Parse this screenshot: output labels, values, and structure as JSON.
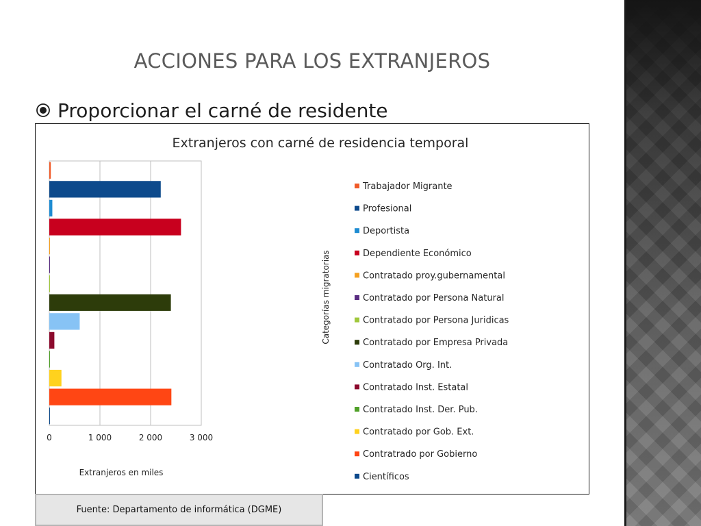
{
  "slide": {
    "title": "ACCIONES PARA LOS EXTRANJEROS",
    "bullet": "Proporcionar el carné de residente",
    "source": "Fuente: Departamento de informática (DGME)"
  },
  "chart_data": {
    "type": "bar",
    "orientation": "horizontal",
    "title": "Extranjeros con carné de residencia temporal",
    "xlabel": "Extranjeros en miles",
    "ylabel": "Categorías migratorias",
    "xlim": [
      0,
      3000
    ],
    "xticks": [
      0,
      1000,
      2000,
      3000
    ],
    "xtick_labels": [
      "0",
      "1 000",
      "2 000",
      "3 000"
    ],
    "grid": true,
    "legend_position": "right",
    "categories": [
      "Trabajador Migrante",
      "Profesional",
      "Deportista",
      "Dependiente Económico",
      "Contratado proy.gubernamental",
      "Contratado por Persona Natural",
      "Contratado por Persona Juridicas",
      "Contratado por Empresa Privada",
      "Contratado Org. Int.",
      "Contratado Inst. Estatal",
      "Contratado Inst. Der. Pub.",
      "Contratado por Gob. Ext.",
      "Contratrado por Gobierno",
      "Científicos"
    ],
    "values": [
      30,
      2200,
      60,
      2600,
      10,
      5,
      5,
      2400,
      600,
      100,
      5,
      240,
      2410,
      5
    ],
    "colors": [
      "#f05a28",
      "#0d4a8c",
      "#1e8cd2",
      "#c8001e",
      "#f5a020",
      "#5a2d82",
      "#a0c83c",
      "#2d3c0a",
      "#87c3f5",
      "#8c0a2d",
      "#50a028",
      "#ffd21e",
      "#ff4614",
      "#0d4a8c"
    ]
  }
}
